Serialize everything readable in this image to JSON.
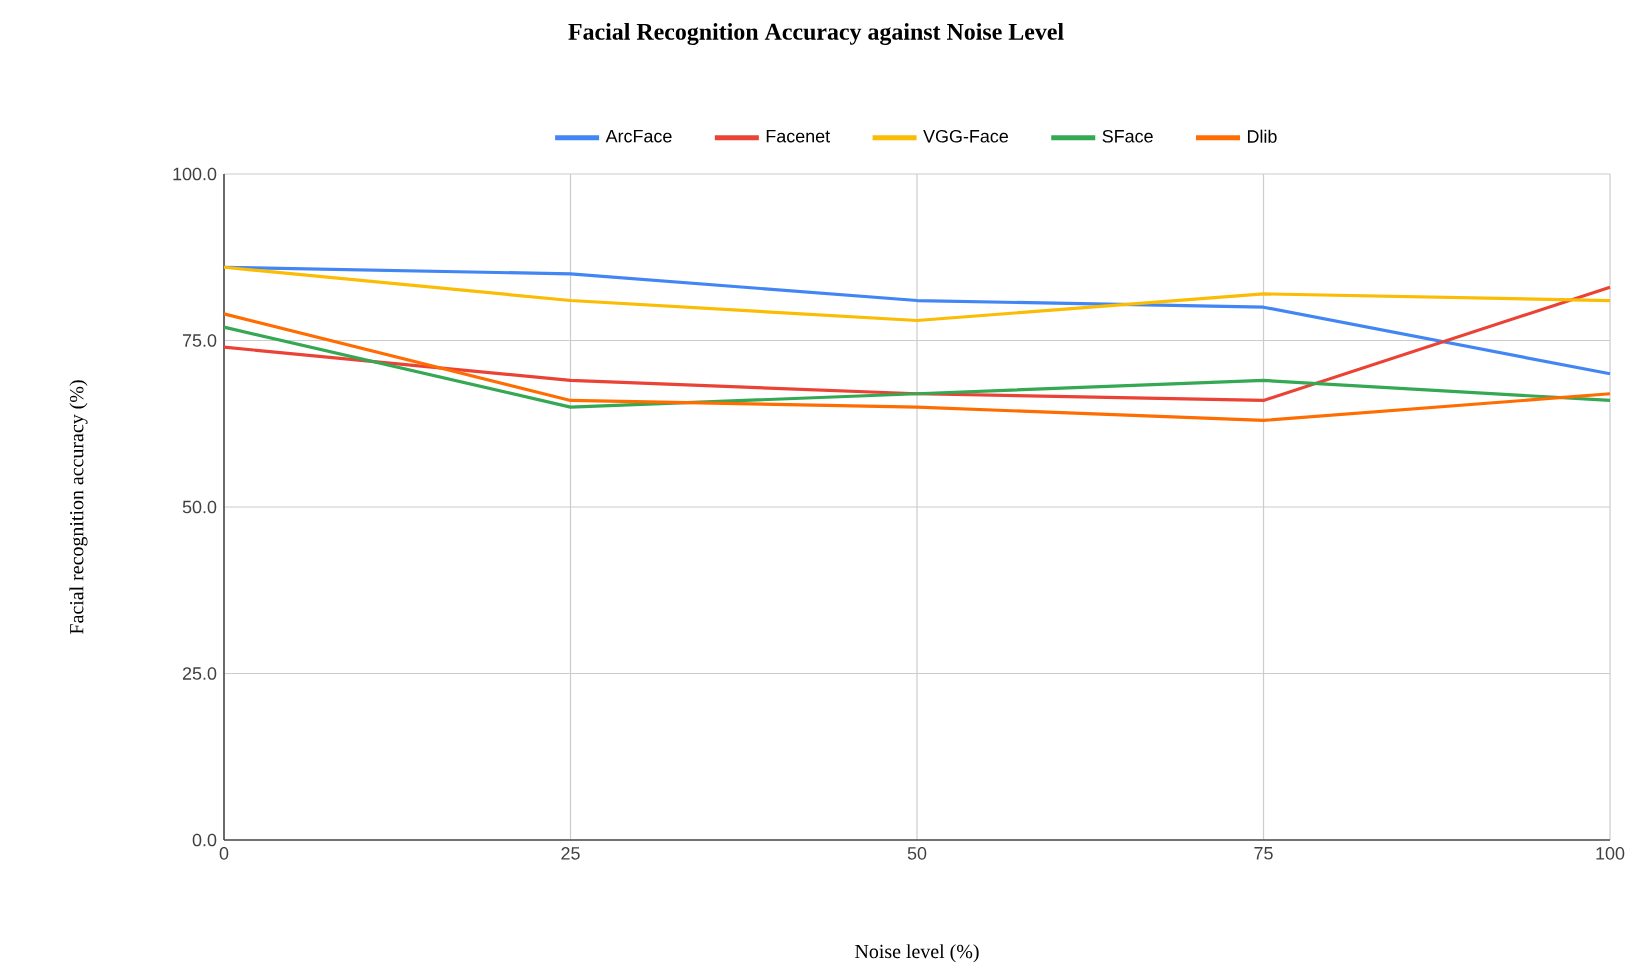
{
  "chart_data": {
    "type": "line",
    "title": "Facial Recognition Accuracy against Noise Level",
    "xlabel": "Noise level (%)",
    "ylabel": "Facial recognition accuracy (%)",
    "x": [
      0,
      25,
      50,
      75,
      100
    ],
    "series": [
      {
        "name": "ArcFace",
        "color": "#4285f4",
        "values": [
          86,
          85,
          81,
          80,
          70
        ]
      },
      {
        "name": "Facenet",
        "color": "#ea4335",
        "values": [
          74,
          69,
          67,
          66,
          83
        ]
      },
      {
        "name": "VGG-Face",
        "color": "#fbbc04",
        "values": [
          86,
          81,
          78,
          82,
          81
        ]
      },
      {
        "name": "SFace",
        "color": "#34a853",
        "values": [
          77,
          65,
          67,
          69,
          66
        ]
      },
      {
        "name": "Dlib",
        "color": "#ff6d01",
        "values": [
          79,
          66,
          65,
          63,
          67
        ]
      }
    ],
    "xlim": [
      0,
      100
    ],
    "xticks": [
      0,
      25,
      50,
      75,
      100
    ],
    "ylim": [
      0,
      100
    ],
    "yticks": [
      {
        "value": 0,
        "label": "0.0"
      },
      {
        "value": 25,
        "label": "25.0"
      },
      {
        "value": 50,
        "label": "50.0"
      },
      {
        "value": 75,
        "label": "75.0"
      },
      {
        "value": 100,
        "label": "100.0"
      }
    ],
    "grid": true,
    "legend": "top",
    "marker": "none",
    "line_style": "solid"
  }
}
